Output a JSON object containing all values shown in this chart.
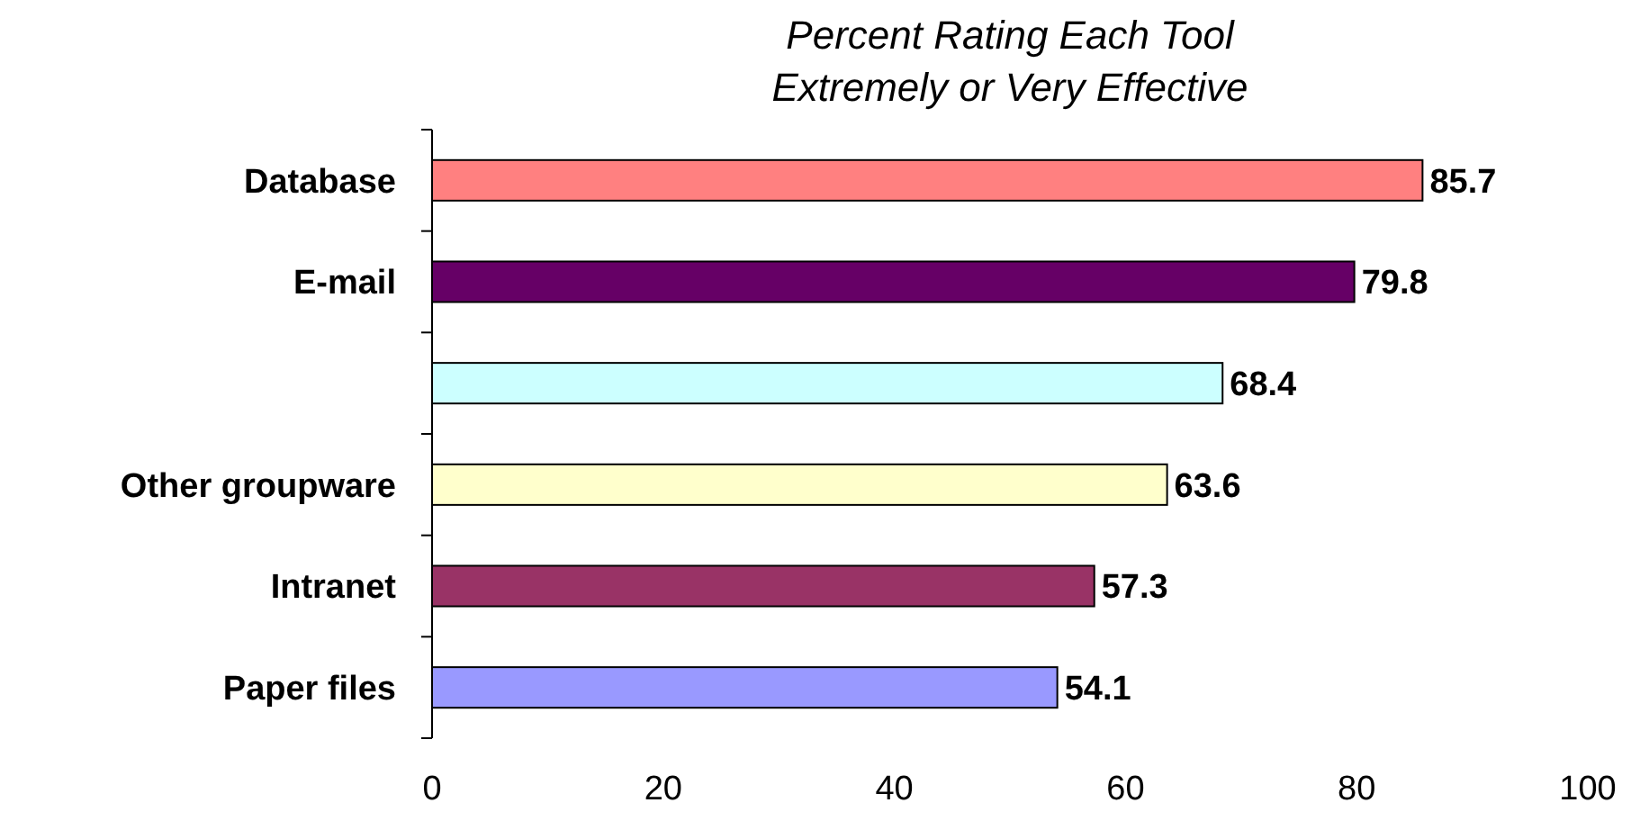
{
  "chart_data": {
    "type": "bar",
    "orientation": "horizontal",
    "title": "Percent Rating Each Tool Extremely or Very Effective",
    "categories": [
      "Database",
      "E-mail",
      null,
      "Other groupware",
      "Intranet",
      "Paper files"
    ],
    "values": [
      85.7,
      79.8,
      68.4,
      63.6,
      57.3,
      54.1
    ],
    "colors": [
      "#ff8080",
      "#660066",
      "#ccffff",
      "#ffffcc",
      "#993366",
      "#9999ff"
    ],
    "xlim": [
      0,
      100
    ],
    "xticks": [
      0,
      20,
      40,
      60,
      80,
      100
    ],
    "data_labels": true
  }
}
